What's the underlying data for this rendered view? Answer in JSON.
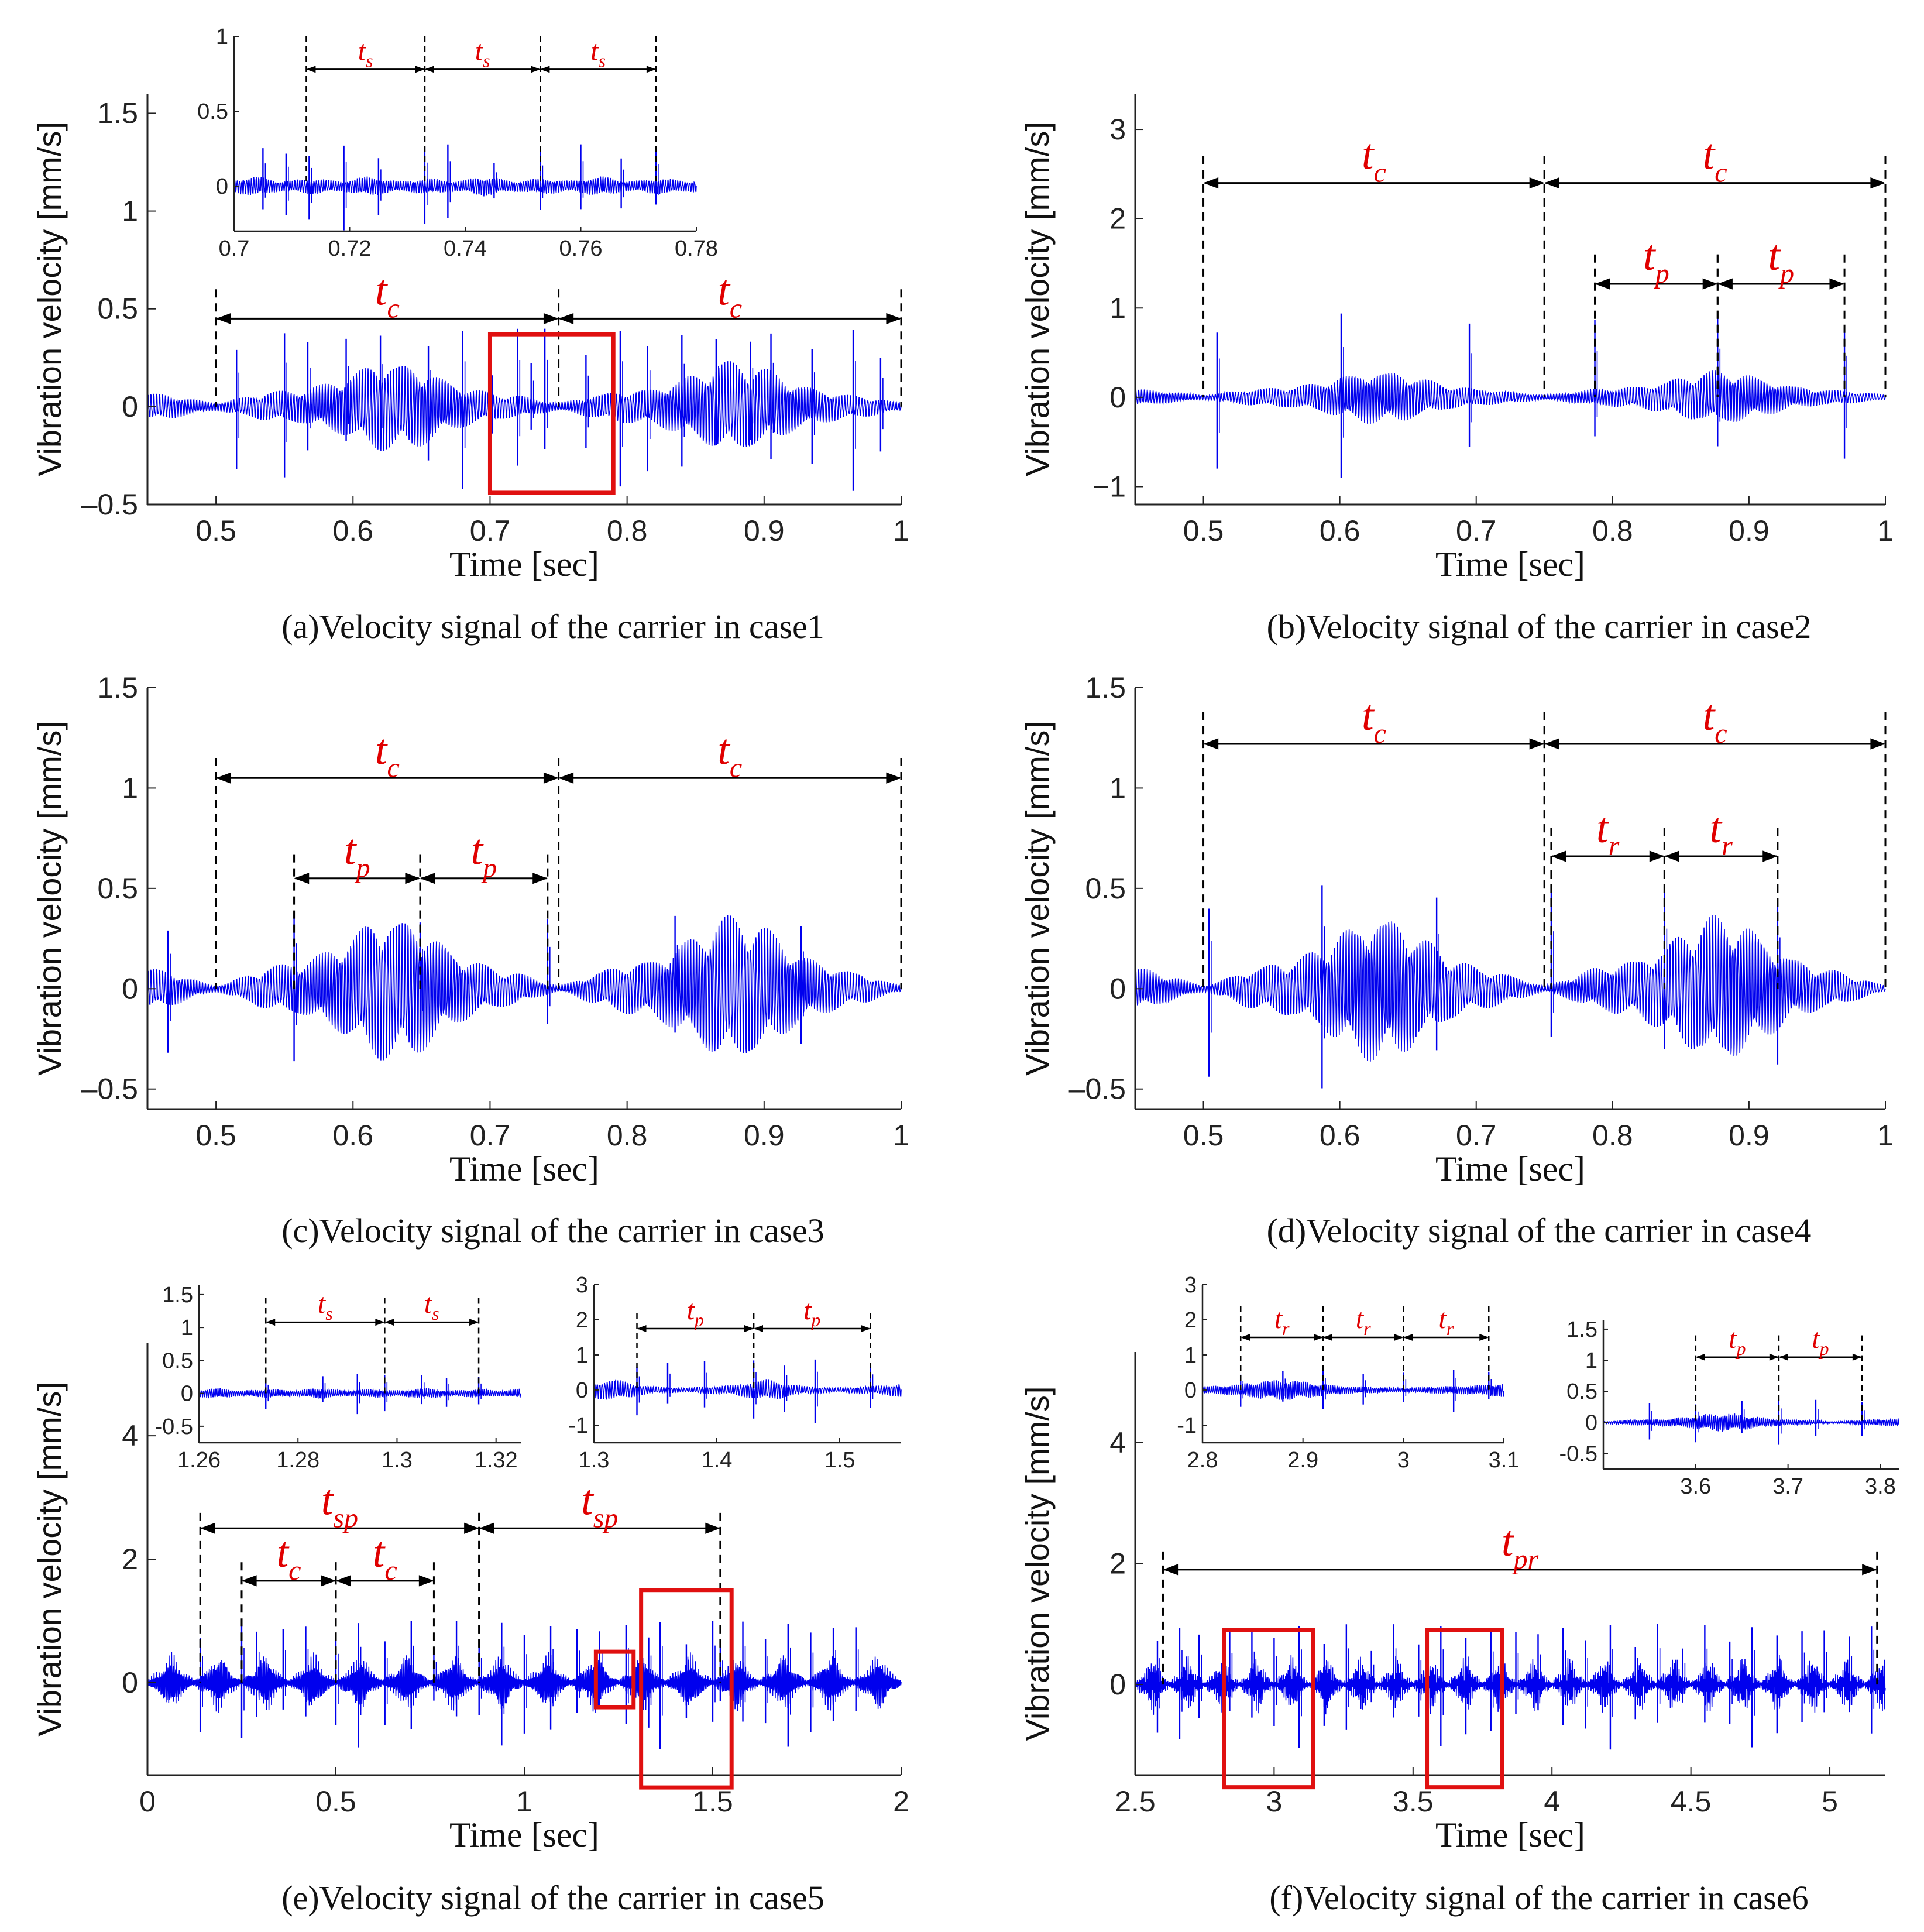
{
  "colors": {
    "signal": "#0000ee",
    "annotation": "#e00000",
    "axis": "#222222",
    "box": "#e01010"
  },
  "chart_data": [
    {
      "id": "a",
      "type": "line",
      "caption": "(a)Velocity signal of the carrier in case1",
      "xlabel": "Time [sec]",
      "ylabel": "Vibration velocity [mm/s]",
      "xlim": [
        0.45,
        1.0
      ],
      "ylim": [
        -0.5,
        1.6
      ],
      "xticks": [
        0.5,
        0.6,
        0.7,
        0.8,
        0.9,
        1.0
      ],
      "xticklabels": [
        "0.5",
        "0.6",
        "0.7",
        "0.8",
        "0.9",
        "1"
      ],
      "yticks": [
        -0.5,
        0,
        0.5,
        1,
        1.5
      ],
      "yticklabels": [
        "–0.5",
        "0",
        "0.5",
        "1",
        "1.5"
      ],
      "signal": {
        "amp": 0.14,
        "env_period": 0.25,
        "env_phase": 0.5,
        "env_dip": 0.1,
        "carrier_hz": 480,
        "spikes": [
          0.515,
          0.55,
          0.567,
          0.595,
          0.62,
          0.655,
          0.68,
          0.7,
          0.72,
          0.73,
          0.74,
          0.77,
          0.795,
          0.815,
          0.84,
          0.865,
          0.89,
          0.905,
          0.935,
          0.965,
          0.985
        ],
        "spike_amp": 0.4
      },
      "zoom_boxes": [
        {
          "x0": 0.7,
          "x1": 0.79,
          "y0": -0.44,
          "y1": 0.37
        }
      ],
      "annotations": [
        {
          "label": "t",
          "sub": "c",
          "x0": 0.5,
          "x1": 0.75,
          "y": 0.45,
          "ytop": 0.6
        },
        {
          "label": "t",
          "sub": "c",
          "x0": 0.75,
          "x1": 1.0,
          "y": 0.45,
          "ytop": 0.6
        }
      ],
      "inset": {
        "xlim": [
          0.7,
          0.78
        ],
        "ylim": [
          -0.3,
          1.0
        ],
        "xticks": [
          0.7,
          0.72,
          0.74,
          0.76,
          0.78
        ],
        "xticklabels": [
          "0.7",
          "0.72",
          "0.74",
          "0.76",
          "0.78"
        ],
        "yticks": [
          0,
          0.5,
          1
        ],
        "yticklabels": [
          "0",
          "0.5",
          "1"
        ],
        "signal": {
          "amp": 0.04,
          "env_period": 0.02,
          "env_phase": 0.713,
          "env_dip": 0.8,
          "carrier_hz": 2400,
          "spikes": [
            0.713,
            0.733,
            0.753,
            0.773,
            0.705,
            0.709,
            0.719,
            0.725,
            0.737,
            0.745,
            0.76,
            0.767
          ],
          "spike_amp": 0.28
        },
        "annotations": [
          {
            "label": "t",
            "sub": "s",
            "x0": 0.7125,
            "x1": 0.733,
            "y": 0.78,
            "ytop": 1.0
          },
          {
            "label": "t",
            "sub": "s",
            "x0": 0.733,
            "x1": 0.753,
            "y": 0.78,
            "ytop": 1.0
          },
          {
            "label": "t",
            "sub": "s",
            "x0": 0.753,
            "x1": 0.773,
            "y": 0.78,
            "ytop": 1.0
          }
        ]
      }
    },
    {
      "id": "b",
      "type": "line",
      "caption": "(b)Velocity signal of the carrier in case2",
      "xlabel": "Time [sec]",
      "ylabel": "Vibration velocity [mm/s]",
      "xlim": [
        0.45,
        1.0
      ],
      "ylim": [
        -1.2,
        3.4
      ],
      "xticks": [
        0.5,
        0.6,
        0.7,
        0.8,
        0.9,
        1.0
      ],
      "xticklabels": [
        "0.5",
        "0.6",
        "0.7",
        "0.8",
        "0.9",
        "1"
      ],
      "yticks": [
        -1,
        0,
        1,
        2,
        3
      ],
      "yticklabels": [
        "−1",
        "0",
        "1",
        "2",
        "3"
      ],
      "signal": {
        "amp": 0.18,
        "env_period": 0.25,
        "env_phase": 0.5,
        "env_dip": 0.1,
        "carrier_hz": 480,
        "spikes": [
          0.51,
          0.601,
          0.695,
          0.787,
          0.877,
          0.97
        ],
        "spike_amp": 1.0
      },
      "zoom_boxes": [],
      "annotations": [
        {
          "label": "t",
          "sub": "c",
          "x0": 0.5,
          "x1": 0.75,
          "y": 2.4,
          "ytop": 2.7
        },
        {
          "label": "t",
          "sub": "c",
          "x0": 0.75,
          "x1": 1.0,
          "y": 2.4,
          "ytop": 2.7
        },
        {
          "label": "t",
          "sub": "p",
          "x0": 0.787,
          "x1": 0.877,
          "y": 1.27,
          "ytop": 1.6
        },
        {
          "label": "t",
          "sub": "p",
          "x0": 0.877,
          "x1": 0.97,
          "y": 1.27,
          "ytop": 1.6
        }
      ]
    },
    {
      "id": "c",
      "type": "line",
      "caption": "(c)Velocity signal of the carrier in case3",
      "xlabel": "Time [sec]",
      "ylabel": "Vibration velocity [mm/s]",
      "xlim": [
        0.45,
        1.0
      ],
      "ylim": [
        -0.6,
        1.5
      ],
      "xticks": [
        0.5,
        0.6,
        0.7,
        0.8,
        0.9,
        1.0
      ],
      "xticklabels": [
        "0.5",
        "0.6",
        "0.7",
        "0.8",
        "0.9",
        "1"
      ],
      "yticks": [
        -0.5,
        0,
        0.5,
        1,
        1.5
      ],
      "yticklabels": [
        "–0.5",
        "0",
        "0.5",
        "1",
        "1.5"
      ],
      "signal": {
        "amp": 0.22,
        "env_period": 0.25,
        "env_phase": 0.5,
        "env_dip": 0.05,
        "carrier_hz": 480,
        "spikes": [
          0.465,
          0.557,
          0.649,
          0.742,
          0.835,
          0.927
        ],
        "spike_amp": 0.4
      },
      "zoom_boxes": [],
      "annotations": [
        {
          "label": "t",
          "sub": "c",
          "x0": 0.5,
          "x1": 0.75,
          "y": 1.05,
          "ytop": 1.15
        },
        {
          "label": "t",
          "sub": "c",
          "x0": 0.75,
          "x1": 1.0,
          "y": 1.05,
          "ytop": 1.15
        },
        {
          "label": "t",
          "sub": "p",
          "x0": 0.557,
          "x1": 0.649,
          "y": 0.55,
          "ytop": 0.67
        },
        {
          "label": "t",
          "sub": "p",
          "x0": 0.649,
          "x1": 0.742,
          "y": 0.55,
          "ytop": 0.67
        }
      ]
    },
    {
      "id": "d",
      "type": "line",
      "caption": "(d)Velocity signal of the carrier in case4",
      "xlabel": "Time [sec]",
      "ylabel": "Vibration velocity [mm/s]",
      "xlim": [
        0.45,
        1.0
      ],
      "ylim": [
        -0.6,
        1.5
      ],
      "xticks": [
        0.5,
        0.6,
        0.7,
        0.8,
        0.9,
        1.0
      ],
      "xticklabels": [
        "0.5",
        "0.6",
        "0.7",
        "0.8",
        "0.9",
        "1"
      ],
      "yticks": [
        -0.5,
        0,
        0.5,
        1,
        1.5
      ],
      "yticklabels": [
        "–0.5",
        "0",
        "0.5",
        "1",
        "1.5"
      ],
      "signal": {
        "amp": 0.22,
        "env_period": 0.25,
        "env_phase": 0.5,
        "env_dip": 0.05,
        "carrier_hz": 480,
        "spikes": [
          0.504,
          0.587,
          0.671,
          0.755,
          0.838,
          0.921
        ],
        "spike_amp": 0.55
      },
      "zoom_boxes": [],
      "annotations": [
        {
          "label": "t",
          "sub": "c",
          "x0": 0.5,
          "x1": 0.75,
          "y": 1.22,
          "ytop": 1.38
        },
        {
          "label": "t",
          "sub": "c",
          "x0": 0.75,
          "x1": 1.0,
          "y": 1.22,
          "ytop": 1.38
        },
        {
          "label": "t",
          "sub": "r",
          "x0": 0.755,
          "x1": 0.838,
          "y": 0.66,
          "ytop": 0.8
        },
        {
          "label": "t",
          "sub": "r",
          "x0": 0.838,
          "x1": 0.921,
          "y": 0.66,
          "ytop": 0.8
        }
      ]
    },
    {
      "id": "e",
      "type": "line",
      "caption": "(e)Velocity signal of the carrier in case5",
      "xlabel": "Time [sec]",
      "ylabel": "Vibration velocity [mm/s]",
      "xlim": [
        0,
        2.0
      ],
      "ylim": [
        -1.5,
        5.5
      ],
      "xticks": [
        0,
        0.5,
        1.0,
        1.5,
        2.0
      ],
      "xticklabels": [
        "0",
        "0.5",
        "1",
        "1.5",
        "2"
      ],
      "yticks": [
        0,
        2,
        4
      ],
      "yticklabels": [
        "0",
        "2",
        "4"
      ],
      "signal": {
        "amp": 0.3,
        "env_period": 0.125,
        "env_phase": 0.0,
        "env_dip": 0.1,
        "carrier_hz": 300,
        "spikes": [
          0.14,
          0.25,
          0.29,
          0.36,
          0.42,
          0.5,
          0.56,
          0.63,
          0.7,
          0.76,
          0.82,
          0.88,
          0.94,
          1.0,
          1.07,
          1.14,
          1.2,
          1.27,
          1.33,
          1.36,
          1.43,
          1.5,
          1.52,
          1.58,
          1.64,
          1.7,
          1.76,
          1.82,
          1.88
        ],
        "spike_amp": 1.0
      },
      "zoom_boxes": [
        {
          "x0": 1.19,
          "x1": 1.29,
          "y0": -0.4,
          "y1": 0.5
        },
        {
          "x0": 1.31,
          "x1": 1.55,
          "y0": -1.7,
          "y1": 1.5
        }
      ],
      "annotations": [
        {
          "label": "t",
          "sub": "sp",
          "x0": 0.14,
          "x1": 0.88,
          "y": 2.5,
          "ytop": 2.75
        },
        {
          "label": "t",
          "sub": "sp",
          "x0": 0.88,
          "x1": 1.52,
          "y": 2.5,
          "ytop": 2.75
        },
        {
          "label": "t",
          "sub": "c",
          "x0": 0.25,
          "x1": 0.5,
          "y": 1.65,
          "ytop": 1.95
        },
        {
          "label": "t",
          "sub": "c",
          "x0": 0.5,
          "x1": 0.76,
          "y": 1.65,
          "ytop": 1.95
        }
      ],
      "insets": [
        {
          "xlim": [
            1.26,
            1.325
          ],
          "ylim": [
            -0.75,
            1.65
          ],
          "xticks": [
            1.26,
            1.28,
            1.3,
            1.32
          ],
          "xticklabels": [
            "1.26",
            "1.28",
            "1.3",
            "1.32"
          ],
          "yticks": [
            -0.5,
            0,
            0.5,
            1,
            1.5
          ],
          "yticklabels": [
            "-0.5",
            "0",
            "0.5",
            "1",
            "1.5"
          ],
          "signal": {
            "amp": 0.05,
            "env_period": 0.021,
            "env_phase": 1.2735,
            "env_dip": 0.8,
            "carrier_hz": 2400,
            "spikes": [
              1.2735,
              1.2975,
              1.3165,
              1.285,
              1.305,
              1.31,
              1.292
            ],
            "spike_amp": 0.3
          },
          "annotations": [
            {
              "label": "t",
              "sub": "s",
              "x0": 1.2735,
              "x1": 1.2975,
              "y": 1.08,
              "ytop": 1.45
            },
            {
              "label": "t",
              "sub": "s",
              "x0": 1.2975,
              "x1": 1.3165,
              "y": 1.08,
              "ytop": 1.45
            }
          ]
        },
        {
          "xlim": [
            1.3,
            1.55
          ],
          "ylim": [
            -1.5,
            3.0
          ],
          "xticks": [
            1.3,
            1.4,
            1.5
          ],
          "xticklabels": [
            "1.3",
            "1.4",
            "1.5"
          ],
          "yticks": [
            -1,
            0,
            1,
            2,
            3
          ],
          "yticklabels": [
            "-1",
            "0",
            "1",
            "2",
            "3"
          ],
          "signal": {
            "amp": 0.18,
            "env_period": 0.125,
            "env_phase": 1.25,
            "env_dip": 0.2,
            "carrier_hz": 480,
            "spikes": [
              1.335,
              1.43,
              1.525,
              1.36,
              1.39,
              1.455,
              1.48
            ],
            "spike_amp": 0.9
          },
          "annotations": [
            {
              "label": "t",
              "sub": "p",
              "x0": 1.335,
              "x1": 1.43,
              "y": 1.75,
              "ytop": 2.2
            },
            {
              "label": "t",
              "sub": "p",
              "x0": 1.43,
              "x1": 1.525,
              "y": 1.75,
              "ytop": 2.2
            }
          ]
        }
      ]
    },
    {
      "id": "f",
      "type": "line",
      "caption": "(f)Velocity signal of the carrier in case6",
      "xlabel": "Time [sec]",
      "ylabel": "Vibration velocity [mm/s]",
      "xlim": [
        2.5,
        5.2
      ],
      "ylim": [
        -1.5,
        5.5
      ],
      "xticks": [
        2.5,
        3.0,
        3.5,
        4.0,
        4.5,
        5.0
      ],
      "xticklabels": [
        "2.5",
        "3",
        "3.5",
        "4",
        "4.5",
        "5"
      ],
      "yticks": [
        0,
        2,
        4
      ],
      "yticklabels": [
        "0",
        "2",
        "4"
      ],
      "signal": {
        "amp": 0.3,
        "env_period": 0.125,
        "env_phase": 2.5,
        "env_dip": 0.1,
        "carrier_hz": 300,
        "spikes": [
          2.58,
          2.66,
          2.73,
          2.84,
          2.92,
          3.0,
          3.09,
          3.18,
          3.26,
          3.35,
          3.43,
          3.52,
          3.6,
          3.69,
          3.78,
          3.87,
          3.95,
          4.04,
          4.12,
          4.21,
          4.3,
          4.38,
          4.47,
          4.55,
          4.64,
          4.72,
          4.81,
          4.9,
          4.98,
          5.07,
          5.15
        ],
        "spike_amp": 1.0
      },
      "zoom_boxes": [
        {
          "x0": 2.82,
          "x1": 3.14,
          "y0": -1.7,
          "y1": 0.9
        },
        {
          "x0": 3.55,
          "x1": 3.82,
          "y0": -1.7,
          "y1": 0.9
        }
      ],
      "annotations": [
        {
          "label": "t",
          "sub": "pr",
          "x0": 2.6,
          "x1": 5.17,
          "y": 1.9,
          "ytop": 2.2
        }
      ],
      "insets": [
        {
          "xlim": [
            2.8,
            3.1
          ],
          "ylim": [
            -1.5,
            3.0
          ],
          "xticks": [
            2.8,
            2.9,
            3.0,
            3.1
          ],
          "xticklabels": [
            "2.8",
            "2.9",
            "3",
            "3.1"
          ],
          "yticks": [
            -1,
            0,
            1,
            2,
            3
          ],
          "yticklabels": [
            "-1",
            "0",
            "1",
            "2",
            "3"
          ],
          "signal": {
            "amp": 0.18,
            "env_period": 0.25,
            "env_phase": 2.75,
            "env_dip": 0.2,
            "carrier_hz": 480,
            "spikes": [
              2.838,
              2.92,
              3.0,
              3.085,
              2.88,
              2.96,
              3.05
            ],
            "spike_amp": 0.6
          },
          "annotations": [
            {
              "label": "t",
              "sub": "r",
              "x0": 2.838,
              "x1": 2.92,
              "y": 1.5,
              "ytop": 2.4
            },
            {
              "label": "t",
              "sub": "r",
              "x0": 2.92,
              "x1": 3.0,
              "y": 1.5,
              "ytop": 2.4
            },
            {
              "label": "t",
              "sub": "r",
              "x0": 3.0,
              "x1": 3.085,
              "y": 1.5,
              "ytop": 2.4
            }
          ]
        },
        {
          "xlim": [
            3.5,
            3.82
          ],
          "ylim": [
            -0.75,
            1.65
          ],
          "xticks": [
            3.6,
            3.7,
            3.8
          ],
          "xticklabels": [
            "3.6",
            "3.7",
            "3.8"
          ],
          "yticks": [
            -0.5,
            0,
            0.5,
            1,
            1.5
          ],
          "yticklabels": [
            "-0.5",
            "0",
            "0.5",
            "1",
            "1.5"
          ],
          "signal": {
            "amp": 0.09,
            "env_period": 0.25,
            "env_phase": 3.5,
            "env_dip": 0.1,
            "carrier_hz": 480,
            "spikes": [
              3.6,
              3.69,
              3.78,
              3.65,
              3.73,
              3.55
            ],
            "spike_amp": 0.4
          },
          "annotations": [
            {
              "label": "t",
              "sub": "p",
              "x0": 3.6,
              "x1": 3.69,
              "y": 1.05,
              "ytop": 1.4
            },
            {
              "label": "t",
              "sub": "p",
              "x0": 3.69,
              "x1": 3.78,
              "y": 1.05,
              "ytop": 1.4
            }
          ]
        }
      ]
    }
  ]
}
